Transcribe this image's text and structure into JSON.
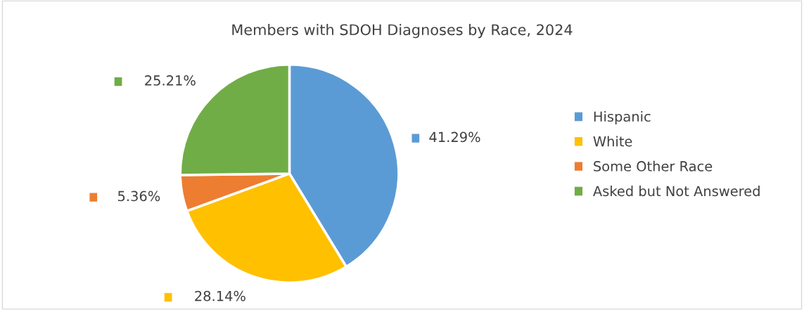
{
  "chart_data": {
    "type": "pie",
    "title": "Members with SDOH Diagnoses by Race, 2024",
    "categories": [
      "Hispanic",
      "White",
      "Some Other Race",
      "Asked but Not Answered"
    ],
    "values": [
      41.29,
      28.14,
      5.36,
      25.21
    ],
    "colors": [
      "#5b9bd5",
      "#ffc000",
      "#ed7d31",
      "#70ad47"
    ],
    "value_labels": [
      "41.29%",
      "28.14%",
      "5.36%",
      "25.21%"
    ],
    "legend": "right"
  }
}
